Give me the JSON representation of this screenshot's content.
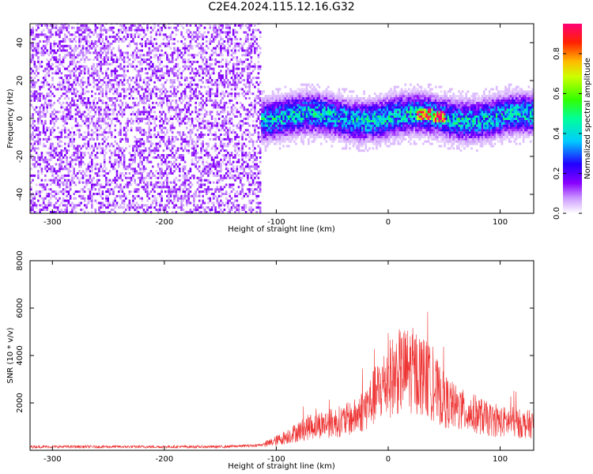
{
  "title": "C2E4.2024.115.12.16.G32",
  "colors": {
    "snr_line": "#ee3333",
    "axis": "#000000",
    "background": "#ffffff"
  },
  "chart_data": [
    {
      "type": "heatmap",
      "title": "C2E4.2024.115.12.16.G32",
      "xlabel": "Height of straight line (km)",
      "ylabel": "Frequency (Hz)",
      "xlim": [
        -320,
        130
      ],
      "ylim": [
        -50,
        50
      ],
      "x_ticks": [
        -300,
        -200,
        -100,
        0,
        100
      ],
      "y_ticks": [
        -40,
        -20,
        0,
        20,
        40
      ],
      "colorbar": {
        "label": "Normalized spectral amplitude",
        "range": [
          0,
          0.95
        ],
        "ticks": [
          0.0,
          0.2,
          0.4,
          0.6,
          0.8
        ],
        "colormap": "rainbow (white-purple-blue-cyan-green-yellow-red-magenta)"
      },
      "regions": [
        {
          "x_range": [
            -320,
            -115
          ],
          "freq_range": [
            -50,
            50
          ],
          "amplitude": 0.1,
          "description_level": "low broadband"
        },
        {
          "x_range": [
            -115,
            130
          ],
          "freq_range": [
            -8,
            8
          ],
          "amplitude": 0.4,
          "description_level": "narrow band near 0 Hz"
        },
        {
          "x_range": [
            25,
            50
          ],
          "freq_range": [
            -2,
            2
          ],
          "amplitude": 0.85,
          "description_level": "peak"
        }
      ]
    },
    {
      "type": "line",
      "xlabel": "Height of straight line (km)",
      "ylabel": "SNR (10 * v/v)",
      "xlim": [
        -320,
        130
      ],
      "ylim": [
        0,
        8000
      ],
      "x_ticks": [
        -300,
        -200,
        -100,
        0,
        100
      ],
      "y_ticks": [
        2000,
        4000,
        6000,
        8000
      ],
      "series": [
        {
          "x": [
            -320,
            -300,
            -250,
            -200,
            -150,
            -120,
            -110,
            -100,
            -90,
            -80,
            -70,
            -60,
            -50,
            -40,
            -30,
            -20,
            -10,
            0,
            10,
            20,
            30,
            40,
            50,
            60,
            70,
            80,
            90,
            100,
            110,
            120,
            130
          ],
          "y": [
            150,
            150,
            150,
            150,
            150,
            200,
            250,
            400,
            600,
            800,
            1000,
            1100,
            1150,
            1250,
            1400,
            1800,
            2400,
            3000,
            3300,
            3400,
            3200,
            2700,
            2100,
            1800,
            1600,
            1500,
            1300,
            1200,
            1200,
            1100,
            1100
          ]
        }
      ]
    }
  ]
}
